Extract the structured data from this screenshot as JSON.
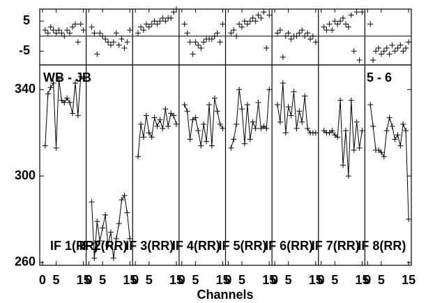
{
  "chart_data": {
    "type": "multi-panel-line",
    "title": "WB - JB",
    "subtitle": "5 - 6",
    "x_label": "Channels",
    "color": "#000000",
    "xlim": [
      -1,
      16
    ],
    "xticks": [
      0,
      5,
      15
    ],
    "ylim": [
      258.7,
      351.4
    ],
    "yticks": [
      260,
      300,
      340
    ],
    "residual_ylim": [
      -9.6,
      9
    ],
    "residual_yticks": [
      -5,
      5
    ],
    "panels": [
      {
        "label": "IF 1(RR)",
        "x": [
          1,
          2,
          3,
          4,
          5,
          6,
          7,
          8,
          9,
          10,
          11,
          12,
          13,
          14,
          15
        ],
        "values": [
          314,
          338,
          341,
          343,
          313,
          345,
          335,
          334,
          336,
          334,
          329,
          343,
          328,
          346,
          345
        ],
        "residuals": [
          2,
          1,
          3,
          2,
          1,
          2,
          1,
          0,
          2,
          1,
          3,
          4,
          -2,
          4,
          2
        ]
      },
      {
        "label": "IF 2(RR)",
        "x": [
          1,
          2,
          3,
          4,
          5,
          6,
          7,
          8,
          9,
          10,
          11,
          12,
          13,
          14,
          15
        ],
        "values": [
          288,
          262,
          279,
          270,
          276,
          282,
          268,
          274,
          262,
          271,
          278,
          289,
          291,
          283,
          271
        ],
        "residuals": [
          3,
          1,
          -6,
          1,
          0,
          -1,
          -2,
          -3,
          -2,
          1,
          -3,
          -1,
          -4,
          -2,
          2
        ]
      },
      {
        "label": "IF 3(RR)",
        "x": [
          1,
          2,
          3,
          4,
          5,
          6,
          7,
          8,
          9,
          10,
          11,
          12,
          13,
          14,
          15
        ],
        "values": [
          309,
          324,
          318,
          328,
          320,
          318,
          327,
          323,
          326,
          322,
          331,
          323,
          329,
          328,
          324
        ],
        "residuals": [
          1,
          3,
          2,
          4,
          3,
          4,
          5,
          4,
          5,
          6,
          5,
          6,
          6,
          8,
          9
        ]
      },
      {
        "label": "IF 4(RR)",
        "x": [
          1,
          2,
          3,
          4,
          5,
          6,
          7,
          8,
          9,
          10,
          11,
          12,
          13,
          14,
          15
        ],
        "values": [
          333,
          330,
          317,
          326,
          327,
          321,
          314,
          324,
          316,
          333,
          314,
          336,
          330,
          324,
          322
        ],
        "residuals": [
          4,
          1,
          -2,
          -6,
          -2,
          -3,
          -4,
          -2,
          -1,
          -1,
          -1,
          0,
          1,
          -2,
          4
        ]
      },
      {
        "label": "IF 5(RR)",
        "x": [
          1,
          2,
          3,
          4,
          5,
          6,
          7,
          8,
          9,
          10,
          11,
          12,
          13,
          14,
          15
        ],
        "values": [
          313,
          317,
          324,
          340,
          331,
          315,
          333,
          317,
          325,
          322,
          334,
          322,
          323,
          322,
          340
        ],
        "residuals": [
          1,
          2,
          0,
          4,
          3,
          5,
          4,
          5,
          6,
          5,
          7,
          6,
          8,
          -4,
          7
        ]
      },
      {
        "label": "IF 6(RR)",
        "x": [
          1,
          2,
          3,
          4,
          5,
          6,
          7,
          8,
          9,
          10,
          11,
          12,
          13,
          14,
          15
        ],
        "values": [
          333,
          325,
          343,
          320,
          332,
          328,
          339,
          322,
          330,
          325,
          337,
          322,
          320,
          320,
          320
        ],
        "residuals": [
          1,
          2,
          -7,
          0,
          1,
          -1,
          0,
          0,
          1,
          2,
          0,
          1,
          -1,
          0,
          -2
        ]
      },
      {
        "label": "IF 7(RR)",
        "x": [
          1,
          2,
          3,
          4,
          5,
          6,
          7,
          8,
          9,
          10,
          11,
          12,
          13,
          14,
          15
        ],
        "values": [
          321,
          320,
          320,
          321,
          319,
          318,
          335,
          305,
          321,
          300,
          335,
          312,
          325,
          313,
          321
        ],
        "residuals": [
          3,
          2,
          4,
          2,
          5,
          4,
          5,
          6,
          4,
          3,
          7,
          -5,
          8,
          -8,
          8
        ]
      },
      {
        "label": "IF 8(RR)",
        "x": [
          1,
          2,
          3,
          4,
          5,
          6,
          7,
          8,
          9,
          10,
          11,
          12,
          13,
          14,
          15
        ],
        "values": [
          333,
          323,
          312,
          312,
          311,
          309,
          321,
          327,
          323,
          317,
          319,
          314,
          324,
          321,
          280
        ],
        "residuals": [
          4,
          -8,
          -5,
          -4,
          -6,
          -5,
          -4,
          -6,
          -3,
          -5,
          -4,
          -3,
          -5,
          -4,
          -2
        ]
      }
    ]
  }
}
